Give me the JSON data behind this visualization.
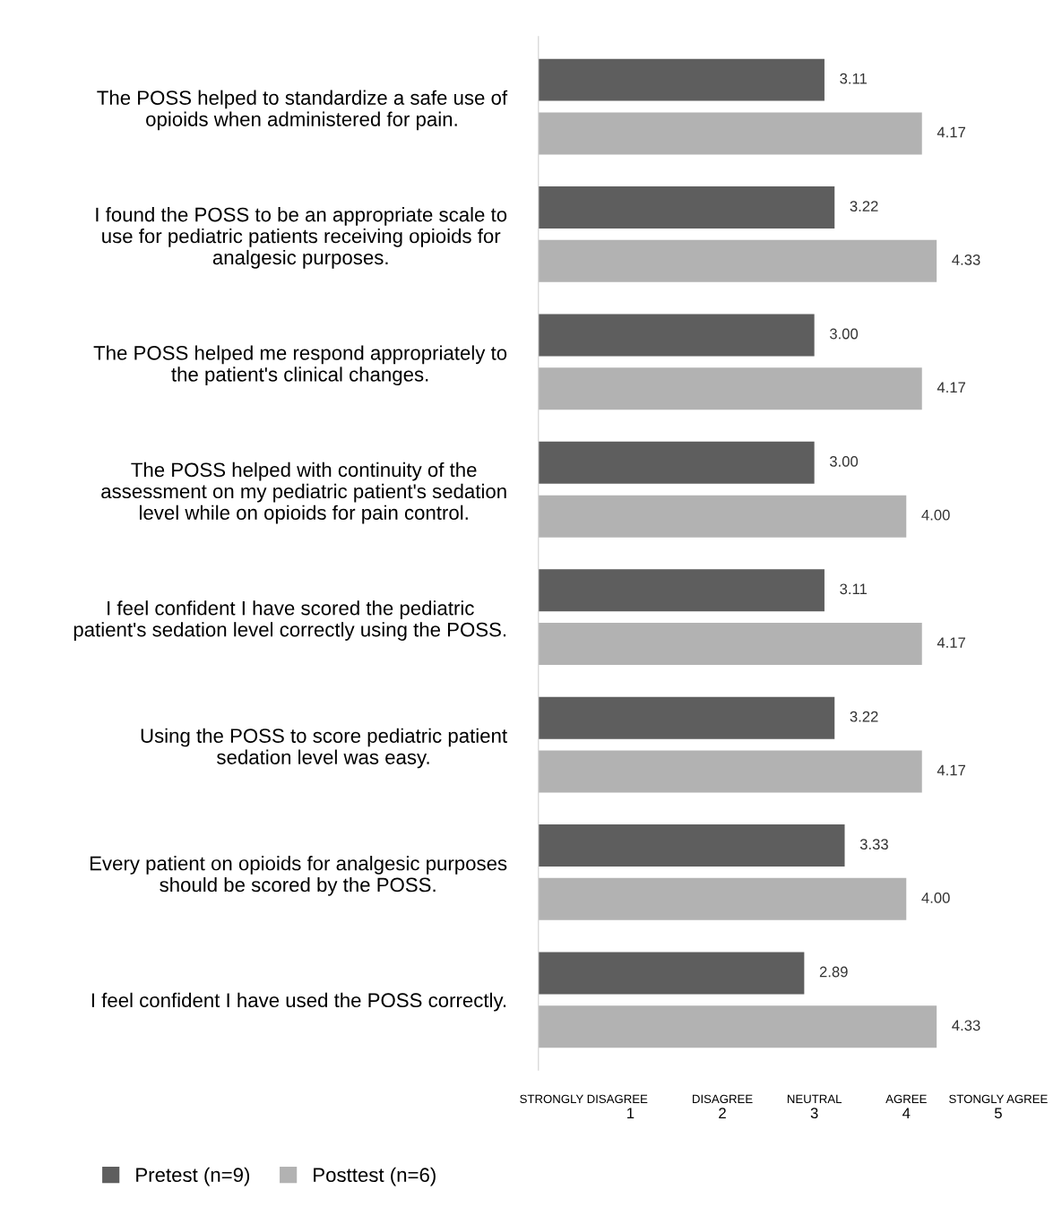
{
  "chart_data": {
    "type": "bar",
    "orientation": "horizontal",
    "categories": [
      "The POSS helped to standardize a safe use of\nopioids when administered for pain.",
      "I found the POSS to be an appropriate scale to\nuse for pediatric patients receiving opioids for\nanalgesic purposes.",
      "The POSS helped me respond appropriately to\nthe patient's clinical changes.",
      "The POSS helped with continuity of the\nassessment on my pediatric patient's sedation\nlevel while on opioids for pain control.",
      "I feel confident I have scored the pediatric\npatient's sedation level correctly using the POSS.",
      "Using the POSS to score pediatric patient\nsedation level was easy.",
      "Every patient on opioids for analgesic purposes\nshould be scored by the POSS.",
      "I feel confident I have used the POSS correctly."
    ],
    "series": [
      {
        "name": "Pretest (n=9)",
        "color": "#5e5e5e",
        "values": [
          3.11,
          3.22,
          3.0,
          3.0,
          3.11,
          3.22,
          3.33,
          2.89
        ],
        "value_labels": [
          "3.11",
          "3.22",
          "3.00",
          "3.00",
          "3.11",
          "3.22",
          "3.33",
          "2.89"
        ]
      },
      {
        "name": "Posttest (n=6)",
        "color": "#b2b2b2",
        "values": [
          4.17,
          4.33,
          4.17,
          4.0,
          4.17,
          4.17,
          4.0,
          4.33
        ],
        "value_labels": [
          "4.17",
          "4.33",
          "4.17",
          "4.00",
          "4.17",
          "4.17",
          "4.00",
          "4.33"
        ]
      }
    ],
    "xlim": [
      0,
      5
    ],
    "xticks": [
      1,
      2,
      3,
      4,
      5
    ],
    "annotations": [
      "STRONGLY DISAGREE",
      "DISAGREE",
      "NEUTRAL",
      "AGREE",
      "STONGLY AGREE"
    ],
    "grid": false,
    "legend": "bottom left"
  }
}
